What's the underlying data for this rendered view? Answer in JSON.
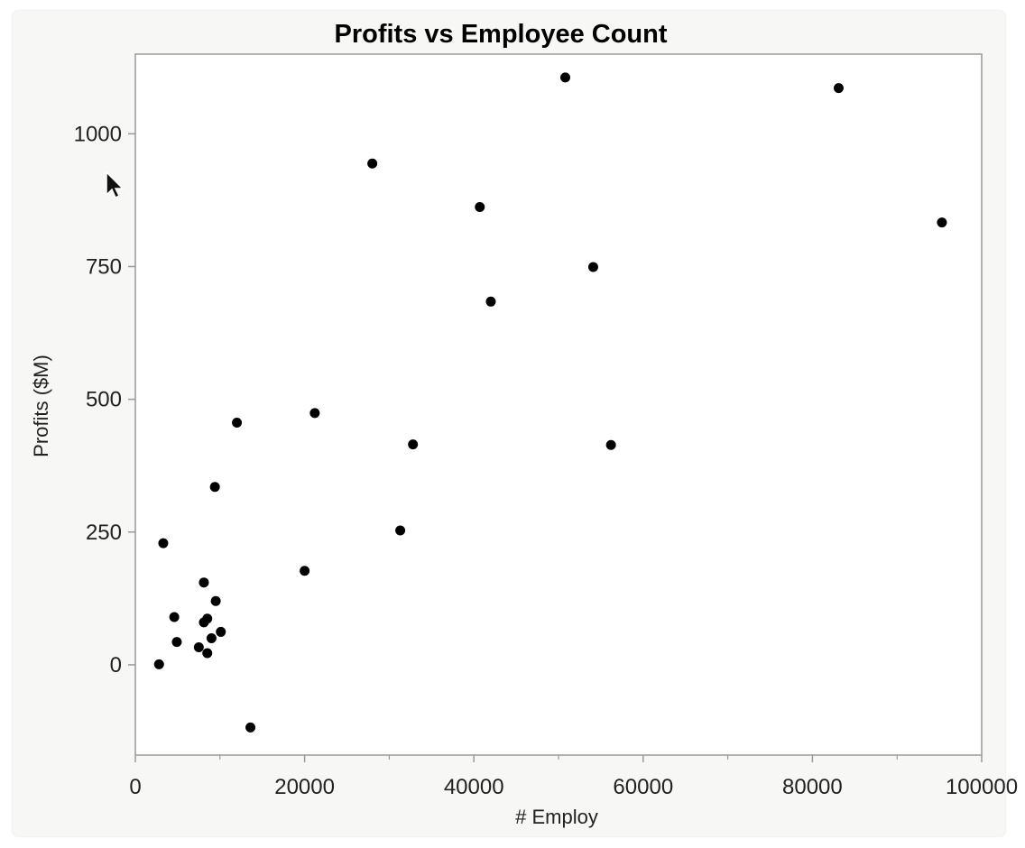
{
  "chart_data": {
    "type": "scatter",
    "title": "Profits vs Employee Count",
    "xlabel": "# Employ",
    "ylabel": "Profits ($M)",
    "xlim": [
      0,
      100000
    ],
    "ylim": [
      -170,
      1150
    ],
    "x_ticks": [
      0,
      20000,
      40000,
      60000,
      80000,
      100000
    ],
    "x_tick_labels": [
      "0",
      "20000",
      "40000",
      "60000",
      "80000",
      "100000"
    ],
    "y_ticks": [
      0,
      250,
      500,
      750,
      1000
    ],
    "y_tick_labels": [
      "0",
      "250",
      "500",
      "750",
      "1000"
    ],
    "grid": false,
    "legend": "none",
    "colors": {
      "point": "#000000",
      "axis": "#9a9a9a",
      "plot_bg": "#ffffff",
      "page_bg": "#f7f7f5"
    },
    "series": [
      {
        "points": [
          {
            "x": 50800,
            "y": 1106
          },
          {
            "x": 83100,
            "y": 1086
          },
          {
            "x": 28000,
            "y": 944
          },
          {
            "x": 40700,
            "y": 862
          },
          {
            "x": 95300,
            "y": 833
          },
          {
            "x": 54100,
            "y": 749
          },
          {
            "x": 42000,
            "y": 684
          },
          {
            "x": 21200,
            "y": 474
          },
          {
            "x": 12000,
            "y": 456
          },
          {
            "x": 32800,
            "y": 415
          },
          {
            "x": 56200,
            "y": 414
          },
          {
            "x": 9400,
            "y": 335
          },
          {
            "x": 31300,
            "y": 253
          },
          {
            "x": 3300,
            "y": 229
          },
          {
            "x": 20000,
            "y": 177
          },
          {
            "x": 8100,
            "y": 155
          },
          {
            "x": 9500,
            "y": 120
          },
          {
            "x": 4600,
            "y": 90
          },
          {
            "x": 8500,
            "y": 87
          },
          {
            "x": 8100,
            "y": 80
          },
          {
            "x": 10100,
            "y": 62
          },
          {
            "x": 9000,
            "y": 50
          },
          {
            "x": 4900,
            "y": 43
          },
          {
            "x": 7500,
            "y": 33
          },
          {
            "x": 8500,
            "y": 22
          },
          {
            "x": 2800,
            "y": 1
          },
          {
            "x": 13600,
            "y": -118
          }
        ]
      }
    ]
  },
  "cursor": {
    "icon": "mouse-pointer-icon"
  }
}
